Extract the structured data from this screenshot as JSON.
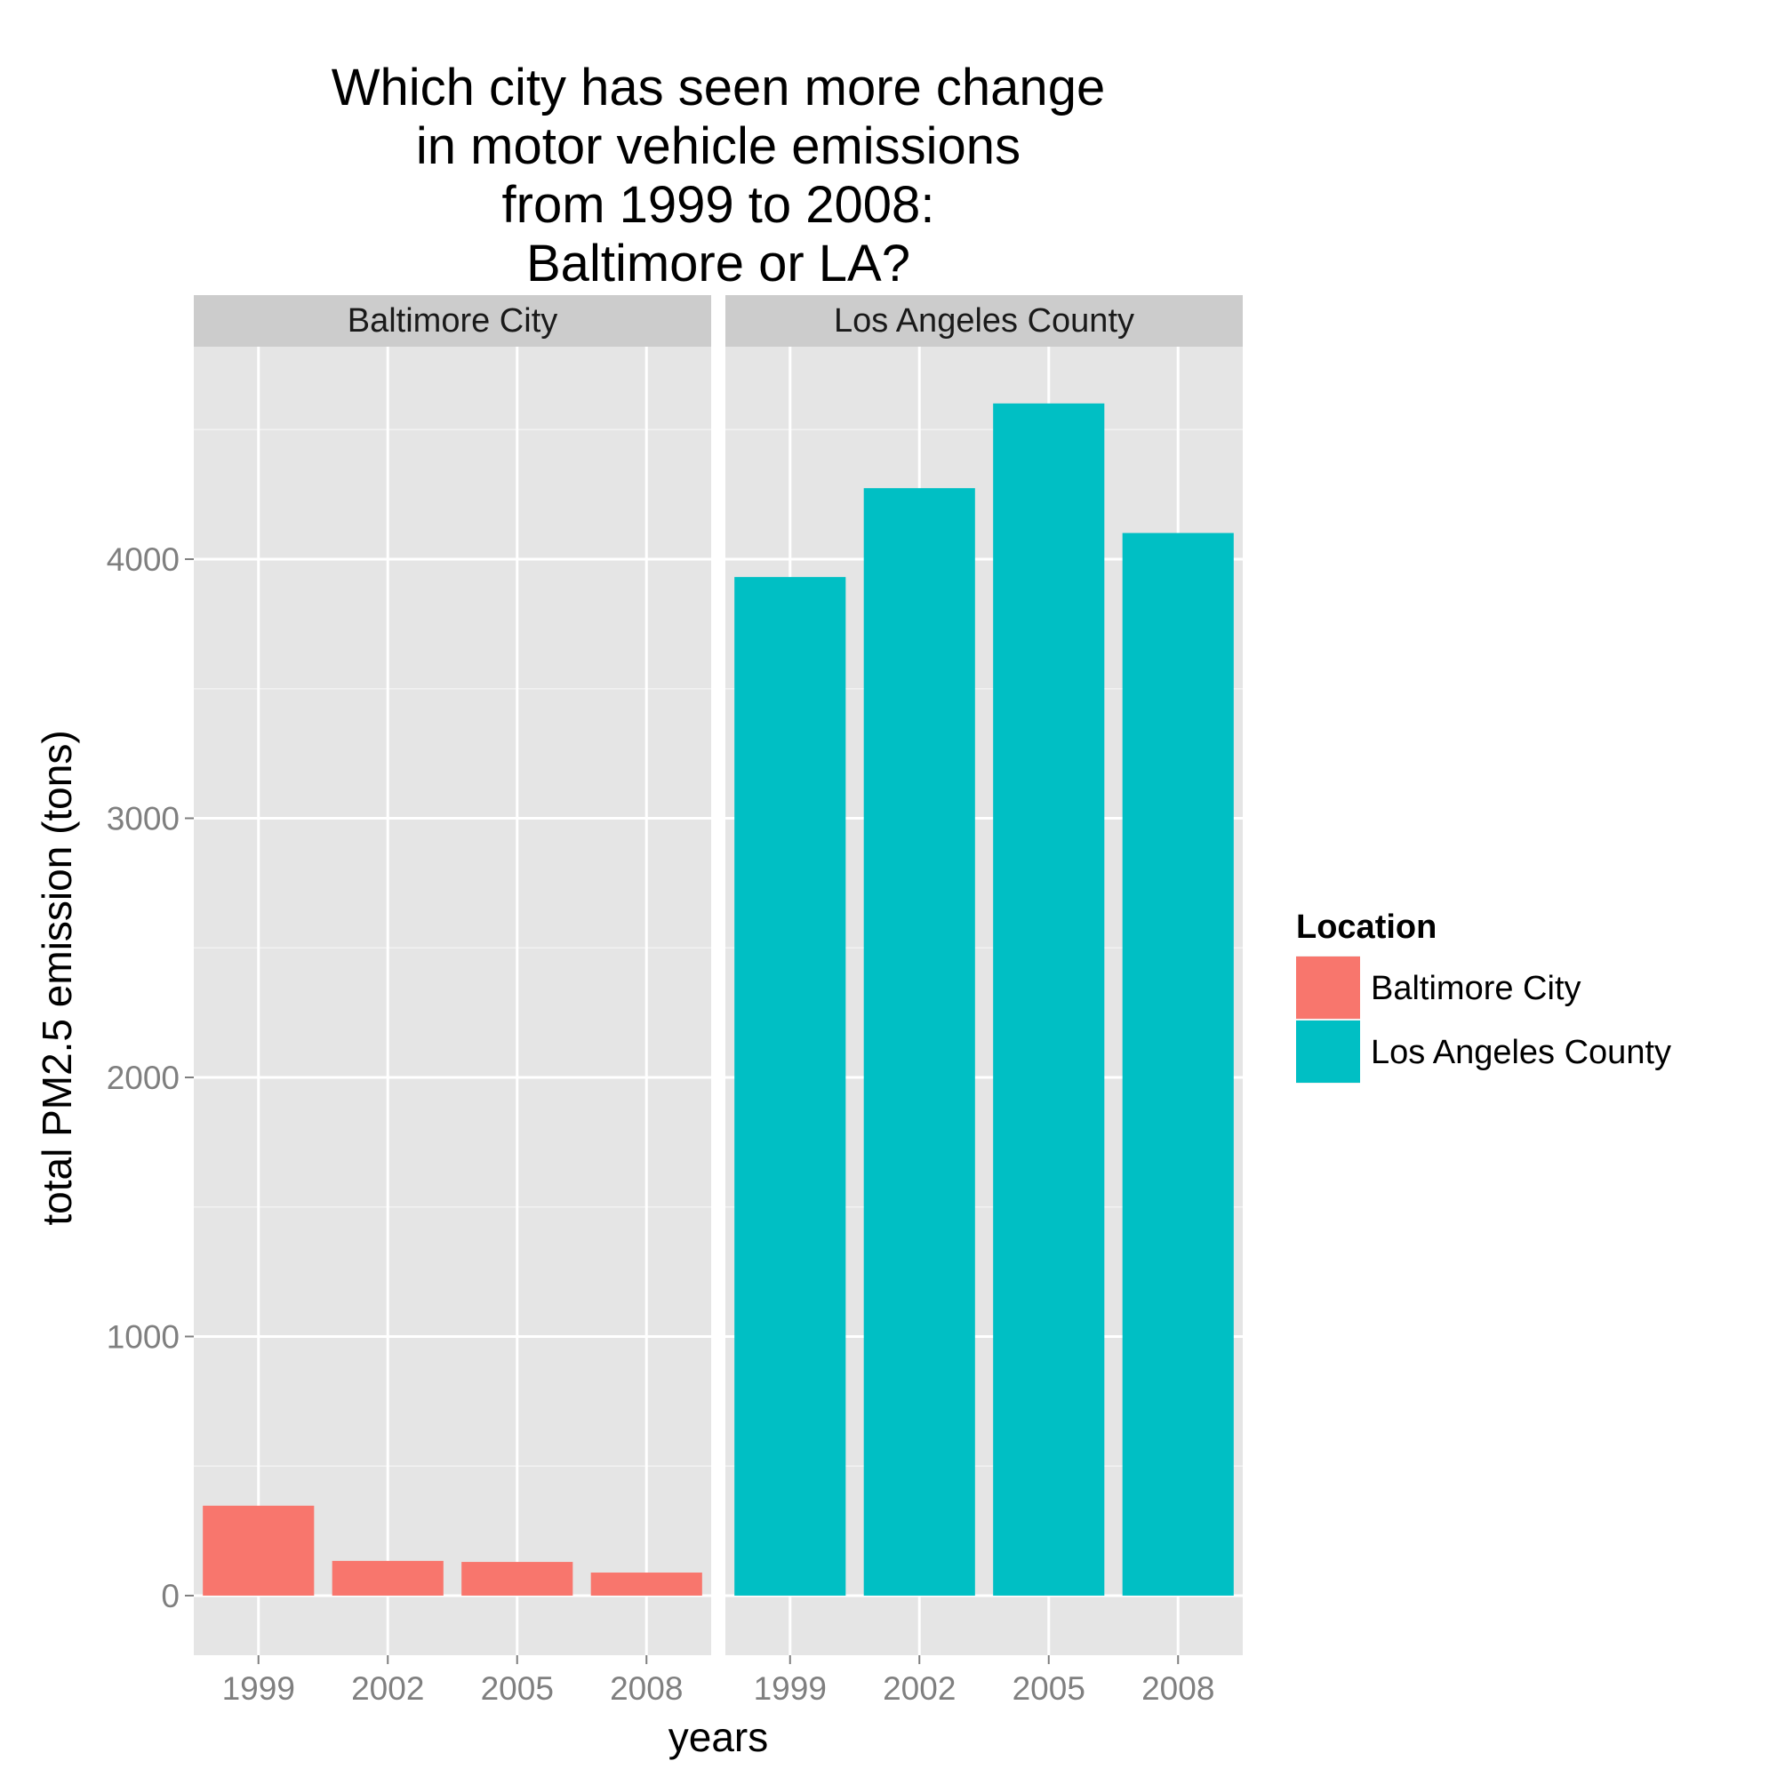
{
  "chart_data": {
    "type": "bar",
    "title": [
      "Which city has seen more change",
      "in motor vehicle emissions",
      "from 1999 to 2008:",
      "Baltimore or LA?"
    ],
    "xlabel": "years",
    "ylabel": "total PM2.5 emission (tons)",
    "categories": [
      "1999",
      "2002",
      "2005",
      "2008"
    ],
    "yticks": [
      0,
      1000,
      2000,
      3000,
      4000
    ],
    "ylim": [
      -230,
      4820
    ],
    "grid": true,
    "legend": {
      "title": "Location",
      "position": "right",
      "entries": [
        "Baltimore City",
        "Los Angeles County"
      ]
    },
    "series": [
      {
        "name": "Baltimore City",
        "color": "#F8766D",
        "values": [
          347,
          134,
          130,
          89
        ]
      },
      {
        "name": "Los Angeles County",
        "color": "#00BFC4",
        "values": [
          3931,
          4274,
          4601,
          4101
        ]
      }
    ],
    "facets": [
      "Baltimore City",
      "Los Angeles County"
    ],
    "colors": {
      "panel": "#E5E5E5",
      "strip": "#CCCCCC",
      "grid": "#FFFFFF",
      "minor_grid": "#F2F2F2"
    }
  }
}
